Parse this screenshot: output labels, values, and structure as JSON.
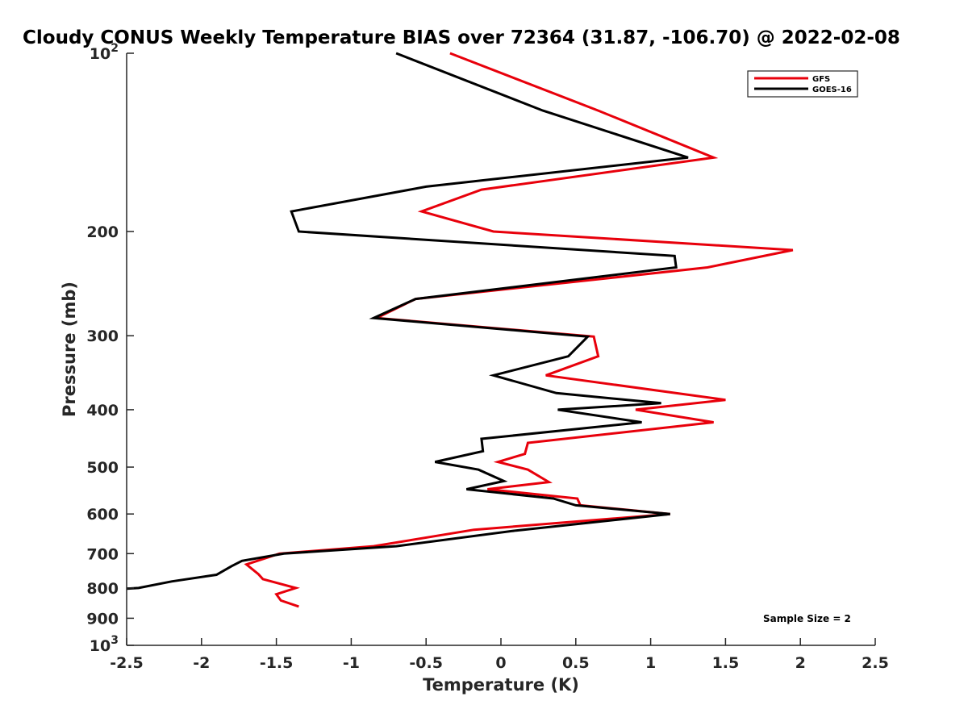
{
  "chart_data": {
    "type": "line",
    "title": "Cloudy CONUS Weekly Temperature BIAS over 72364 (31.87, -106.70) @ 2022-02-08",
    "xlabel": "Temperature (K)",
    "ylabel": "Pressure (mb)",
    "xlim": [
      -2.5,
      2.5
    ],
    "ylim": [
      100,
      1000
    ],
    "y_scale": "log",
    "y_direction": "reversed",
    "grid": false,
    "x_ticks": [
      "-2.5",
      "-2",
      "-1.5",
      "-1",
      "-0.5",
      "0",
      "0.5",
      "1",
      "1.5",
      "2",
      "2.5"
    ],
    "x_tick_values": [
      -2.5,
      -2,
      -1.5,
      -1,
      -0.5,
      0,
      0.5,
      1,
      1.5,
      2,
      2.5
    ],
    "y_ticks": [
      {
        "value": 100,
        "base": "10",
        "exp": "2",
        "label": ""
      },
      {
        "value": 200,
        "label": "200"
      },
      {
        "value": 300,
        "label": "300"
      },
      {
        "value": 400,
        "label": "400"
      },
      {
        "value": 500,
        "label": "500"
      },
      {
        "value": 600,
        "label": "600"
      },
      {
        "value": 700,
        "label": "700"
      },
      {
        "value": 800,
        "label": "800"
      },
      {
        "value": 900,
        "label": "900"
      },
      {
        "value": 1000,
        "base": "10",
        "exp": "3",
        "label": ""
      }
    ],
    "legend_position": "top-right",
    "series": [
      {
        "name": "GFS",
        "color": "#e8000b",
        "points": [
          [
            -0.34,
            100
          ],
          [
            0.65,
            125
          ],
          [
            1.42,
            150
          ],
          [
            -0.13,
            170
          ],
          [
            -0.53,
            185
          ],
          [
            -0.05,
            200
          ],
          [
            1.95,
            215
          ],
          [
            1.38,
            230
          ],
          [
            -0.57,
            260
          ],
          [
            -0.83,
            280
          ],
          [
            0.62,
            301
          ],
          [
            0.65,
            325
          ],
          [
            0.3,
            350
          ],
          [
            1.5,
            385
          ],
          [
            0.9,
            400
          ],
          [
            1.42,
            420
          ],
          [
            0.18,
            455
          ],
          [
            0.16,
            475
          ],
          [
            -0.02,
            490
          ],
          [
            0.18,
            505
          ],
          [
            0.32,
            530
          ],
          [
            -0.09,
            545
          ],
          [
            0.51,
            565
          ],
          [
            0.53,
            580
          ],
          [
            1.13,
            600
          ],
          [
            -0.18,
            638
          ],
          [
            -0.85,
            680
          ],
          [
            -1.48,
            700
          ],
          [
            -1.7,
            730
          ],
          [
            -1.62,
            758
          ],
          [
            -1.59,
            773
          ],
          [
            -1.37,
            800
          ],
          [
            -1.5,
            820
          ],
          [
            -1.47,
            840
          ],
          [
            -1.35,
            860
          ]
        ]
      },
      {
        "name": "GOES-16",
        "color": "#000000",
        "points": [
          [
            -0.7,
            100
          ],
          [
            0.28,
            125
          ],
          [
            1.25,
            150
          ],
          [
            -0.5,
            168
          ],
          [
            -1.4,
            185
          ],
          [
            -1.35,
            200
          ],
          [
            1.16,
            220
          ],
          [
            1.17,
            230
          ],
          [
            -0.57,
            260
          ],
          [
            -0.85,
            280
          ],
          [
            0.58,
            301
          ],
          [
            0.45,
            325
          ],
          [
            -0.05,
            350
          ],
          [
            0.37,
            375
          ],
          [
            1.07,
            390
          ],
          [
            0.38,
            400
          ],
          [
            0.94,
            420
          ],
          [
            -0.13,
            448
          ],
          [
            -0.12,
            470
          ],
          [
            -0.44,
            490
          ],
          [
            -0.15,
            505
          ],
          [
            0.02,
            528
          ],
          [
            -0.23,
            545
          ],
          [
            0.35,
            565
          ],
          [
            0.5,
            580
          ],
          [
            1.13,
            600
          ],
          [
            0.1,
            640
          ],
          [
            -0.7,
            680
          ],
          [
            -1.45,
            700
          ],
          [
            -1.73,
            720
          ],
          [
            -1.8,
            735
          ],
          [
            -1.9,
            760
          ],
          [
            -2.2,
            780
          ],
          [
            -2.42,
            800
          ],
          [
            -2.5,
            802
          ]
        ]
      }
    ],
    "annotations": [
      "Sample Size = 2"
    ]
  }
}
